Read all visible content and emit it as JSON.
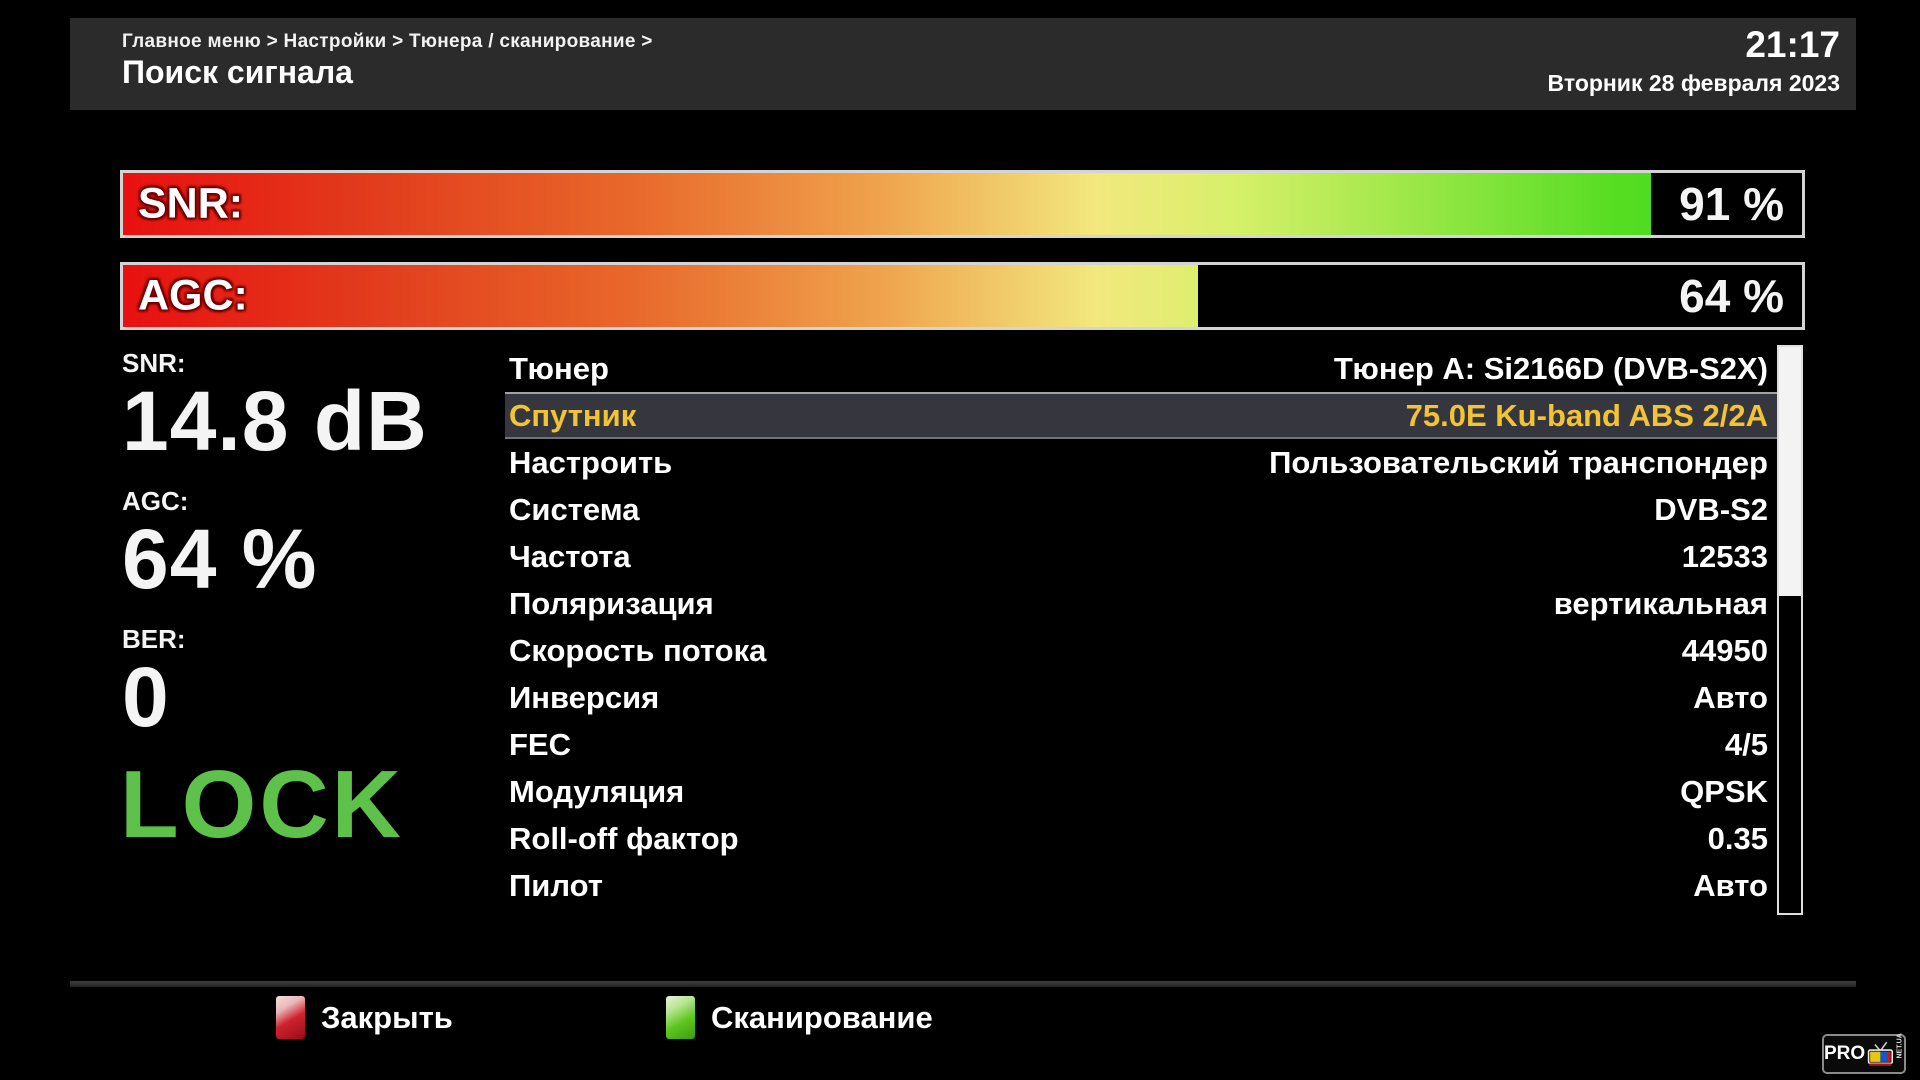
{
  "header": {
    "breadcrumb": "Главное меню > Настройки > Тюнера / сканирование >",
    "title": "Поиск сигнала",
    "time": "21:17",
    "date": "Вторник 28 февраля 2023"
  },
  "bars": [
    {
      "id": "snr",
      "label": "SNR:",
      "value_text": "91 %",
      "fill_percent": 91
    },
    {
      "id": "agc",
      "label": "AGC:",
      "value_text": "64 %",
      "fill_percent": 64
    }
  ],
  "stats": [
    {
      "label": "SNR:",
      "value": "14.8 dB"
    },
    {
      "label": "AGC:",
      "value": "64 %"
    },
    {
      "label": "BER:",
      "value": "0"
    }
  ],
  "lock_status": "LOCK",
  "menu": {
    "selected_index": 1,
    "items": [
      {
        "label": "Тюнер",
        "value": "Тюнер A: Si2166D (DVB-S2X)"
      },
      {
        "label": "Спутник",
        "value": "75.0E Ku-band ABS 2/2A"
      },
      {
        "label": "Настроить",
        "value": "Пользовательский транспондер"
      },
      {
        "label": "Система",
        "value": "DVB-S2"
      },
      {
        "label": "Частота",
        "value": "12533"
      },
      {
        "label": "Поляризация",
        "value": "вертикальная"
      },
      {
        "label": "Скорость потока",
        "value": "44950"
      },
      {
        "label": "Инверсия",
        "value": "Авто"
      },
      {
        "label": "FEC",
        "value": "4/5"
      },
      {
        "label": "Модуляция",
        "value": "QPSK"
      },
      {
        "label": "Roll-off фактор",
        "value": "0.35"
      },
      {
        "label": "Пилот",
        "value": "Авто"
      }
    ]
  },
  "scrollbar": {
    "thumb_percent": 44
  },
  "footer": {
    "buttons": [
      {
        "key": "red",
        "label": "Закрыть",
        "color": "#c01322"
      },
      {
        "key": "green",
        "label": "Сканирование",
        "color": "#56bb1d"
      }
    ]
  },
  "logo": {
    "text": "PRO",
    "tv": "TV",
    "suffix": "NET.UA"
  },
  "colors": {
    "header_bg": "#2b2b2b",
    "highlight_bg": "#35363e",
    "highlight_text": "#f2c433",
    "lock_green": "#5ec24a",
    "bar_gradient_start": "#e81010",
    "bar_gradient_end": "#3fd818"
  }
}
